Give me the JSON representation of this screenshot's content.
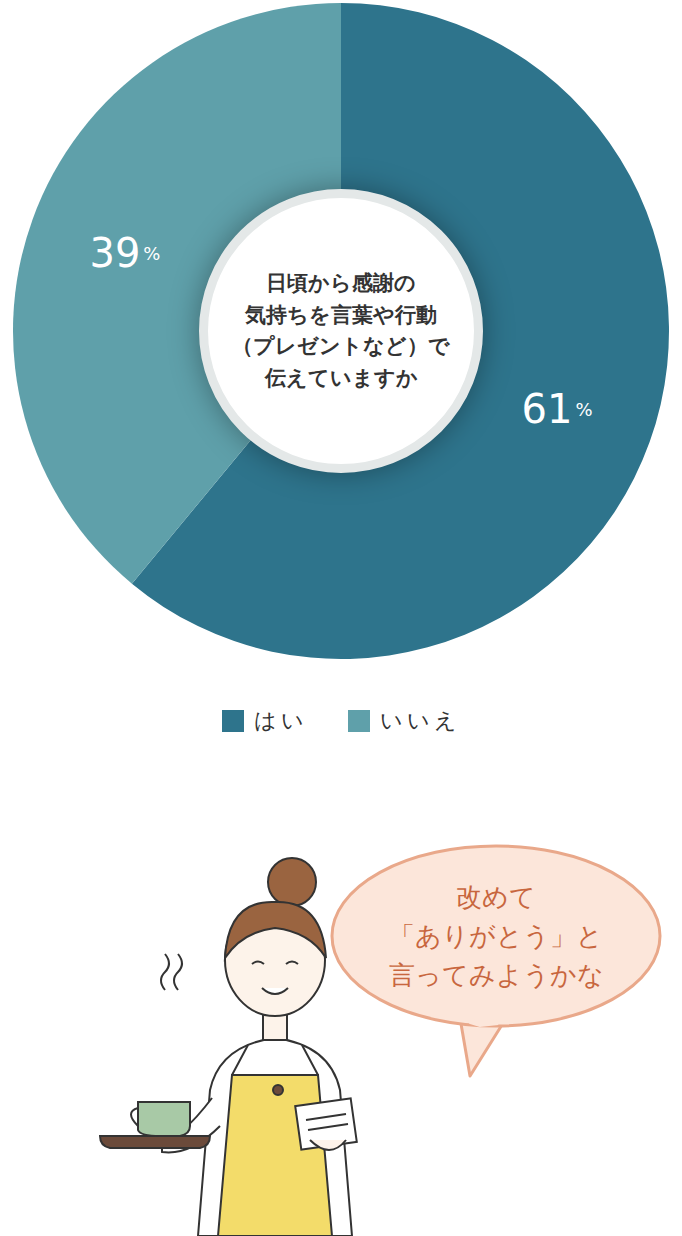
{
  "chart_data": {
    "type": "pie",
    "title": "日頃から感謝の\n気持ちを言葉や行動\n（プレゼントなど）で\n伝えていますか",
    "categories": [
      "はい",
      "いいえ"
    ],
    "values": [
      61,
      39
    ],
    "value_labels": [
      "61%",
      "39%"
    ],
    "colors": [
      "#2e748c",
      "#5fa0aa"
    ],
    "data_labels": true,
    "legend": "bottom",
    "annotation": "改めて\n「ありがとう」と\n言ってみようかな"
  }
}
